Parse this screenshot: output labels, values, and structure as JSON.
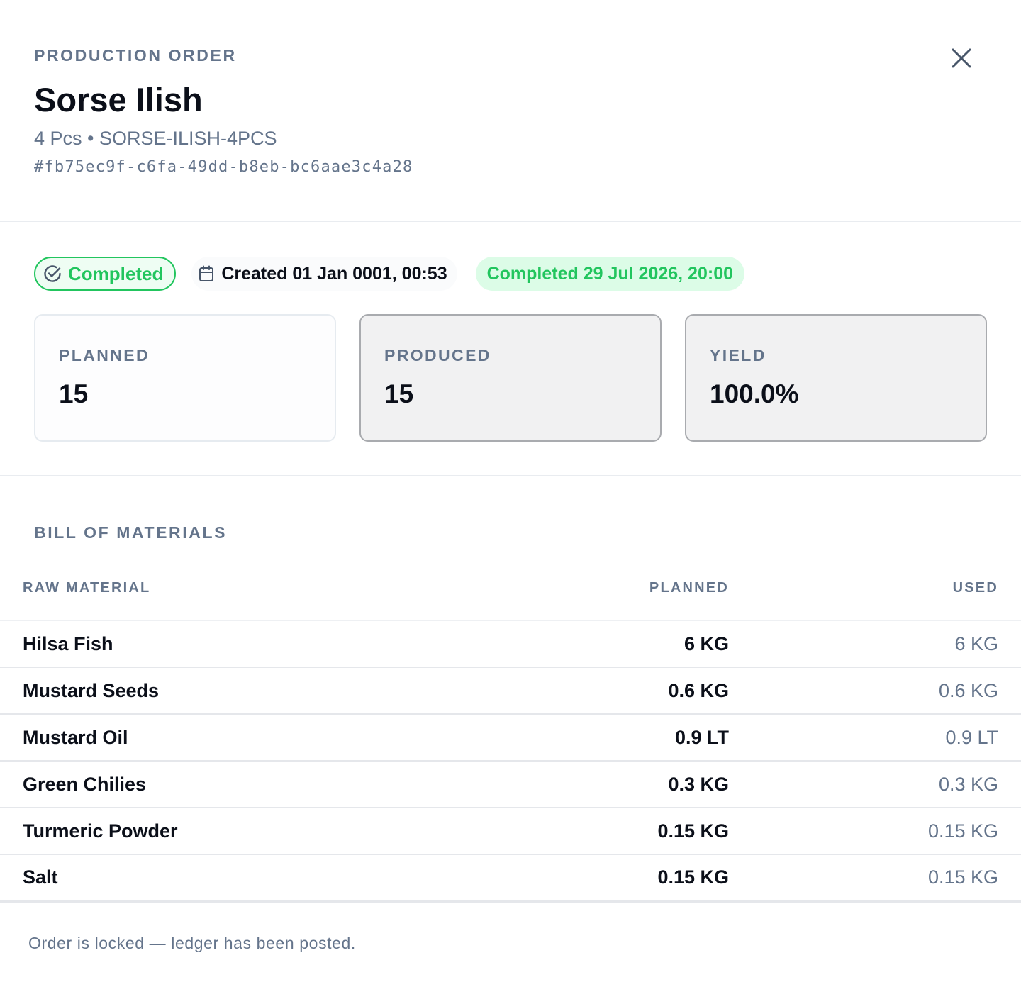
{
  "header": {
    "eyebrow": "PRODUCTION ORDER",
    "title": "Sorse Ilish",
    "subtitle": "4 Pcs • SORSE-ILISH-4PCS",
    "order_id": "#fb75ec9f-c6fa-49dd-b8eb-bc6aae3c4a28",
    "close_icon": "close-icon"
  },
  "status": {
    "label": "Completed",
    "icon": "check-circle-icon",
    "color": "#22c55e"
  },
  "created": {
    "icon": "calendar-icon",
    "label": "Created 01 Jan 0001, 00:53"
  },
  "completed_at": {
    "label": "Completed 29 Jul 2026, 20:00"
  },
  "stats": {
    "planned": {
      "label": "PLANNED",
      "value": "15"
    },
    "produced": {
      "label": "PRODUCED",
      "value": "15"
    },
    "yield": {
      "label": "YIELD",
      "value": "100.0%"
    }
  },
  "bom": {
    "heading": "BILL OF MATERIALS",
    "columns": {
      "name": "RAW MATERIAL",
      "planned": "PLANNED",
      "used": "USED"
    },
    "rows": [
      {
        "name": "Hilsa Fish",
        "planned": "6 KG",
        "used": "6 KG"
      },
      {
        "name": "Mustard Seeds",
        "planned": "0.6 KG",
        "used": "0.6 KG"
      },
      {
        "name": "Mustard Oil",
        "planned": "0.9 LT",
        "used": "0.9 LT"
      },
      {
        "name": "Green Chilies",
        "planned": "0.3 KG",
        "used": "0.3 KG"
      },
      {
        "name": "Turmeric Powder",
        "planned": "0.15 KG",
        "used": "0.15 KG"
      },
      {
        "name": "Salt",
        "planned": "0.15 KG",
        "used": "0.15 KG"
      }
    ]
  },
  "footer": {
    "note": "Order is locked — ledger has been posted."
  }
}
